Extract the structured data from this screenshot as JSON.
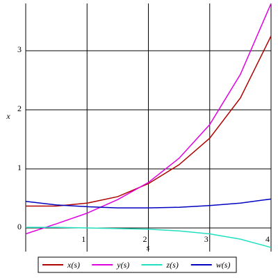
{
  "chart_data": {
    "type": "line",
    "x_label": "s",
    "y_label": "x",
    "x": [
      0,
      0.5,
      1,
      1.5,
      2,
      2.5,
      3,
      3.5,
      4
    ],
    "series": [
      {
        "name": "x(s)",
        "color": "#b00000",
        "values": [
          0.37,
          0.37,
          0.42,
          0.53,
          0.75,
          1.07,
          1.52,
          2.2,
          3.25
        ]
      },
      {
        "name": "y(s)",
        "color": "#e000e0",
        "values": [
          -0.1,
          0.07,
          0.25,
          0.48,
          0.77,
          1.18,
          1.75,
          2.6,
          3.8
        ]
      },
      {
        "name": "z(s)",
        "color": "#20e0c0",
        "values": [
          0.01,
          0.01,
          0.0,
          -0.01,
          -0.02,
          -0.05,
          -0.1,
          -0.19,
          -0.33
        ]
      },
      {
        "name": "w(s)",
        "color": "#0000c0",
        "values": [
          0.45,
          0.39,
          0.36,
          0.34,
          0.34,
          0.35,
          0.38,
          0.42,
          0.49
        ]
      }
    ],
    "xlim": [
      0,
      4
    ],
    "ylim": [
      -0.4,
      3.8
    ],
    "xticks": [
      1,
      2,
      3,
      4
    ],
    "yticks": [
      0,
      1,
      2,
      3
    ],
    "grid": true,
    "legend": "bottom"
  }
}
